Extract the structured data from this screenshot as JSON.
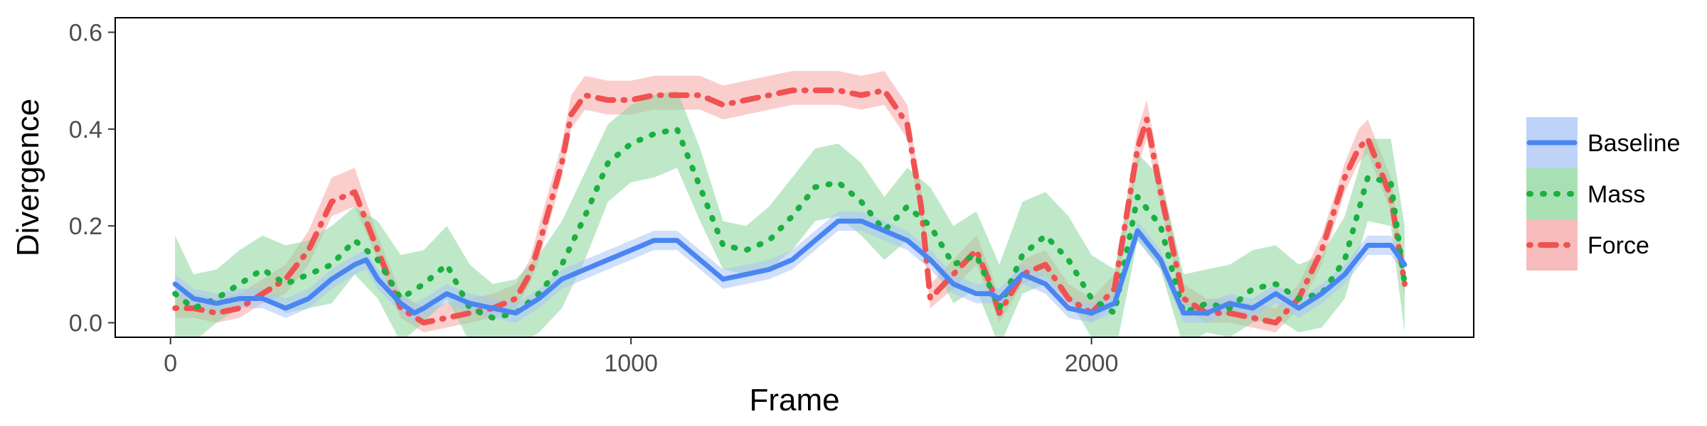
{
  "chart_data": {
    "type": "line",
    "xlabel": "Frame",
    "ylabel": "Divergence",
    "xlim": [
      -120,
      2830
    ],
    "ylim": [
      -0.03,
      0.63
    ],
    "xticks": [
      0,
      1000,
      2000
    ],
    "yticks": [
      0.0,
      0.2,
      0.4,
      0.6
    ],
    "xtick_labels": [
      "0",
      "1000",
      "2000"
    ],
    "ytick_labels": [
      "0.0",
      "0.2",
      "0.4",
      "0.6"
    ],
    "grid": false,
    "legend_position": "right",
    "series": [
      {
        "name": "Baseline",
        "color": "#4a86f2",
        "band_color": "#aac4f7",
        "style": "solid",
        "x": [
          10,
          50,
          100,
          150,
          200,
          250,
          300,
          350,
          400,
          425,
          450,
          500,
          530,
          550,
          600,
          650,
          700,
          750,
          800,
          850,
          900,
          950,
          1000,
          1050,
          1100,
          1150,
          1200,
          1250,
          1300,
          1350,
          1400,
          1450,
          1500,
          1550,
          1600,
          1650,
          1700,
          1750,
          1780,
          1800,
          1850,
          1900,
          1950,
          2000,
          2050,
          2100,
          2150,
          2200,
          2250,
          2300,
          2350,
          2400,
          2450,
          2500,
          2550,
          2600,
          2650,
          2680
        ],
        "y": [
          0.08,
          0.05,
          0.04,
          0.05,
          0.05,
          0.03,
          0.05,
          0.09,
          0.12,
          0.13,
          0.09,
          0.04,
          0.02,
          0.03,
          0.06,
          0.04,
          0.03,
          0.02,
          0.05,
          0.09,
          0.11,
          0.13,
          0.15,
          0.17,
          0.17,
          0.13,
          0.09,
          0.1,
          0.11,
          0.13,
          0.17,
          0.21,
          0.21,
          0.19,
          0.17,
          0.13,
          0.08,
          0.06,
          0.06,
          0.05,
          0.1,
          0.08,
          0.03,
          0.02,
          0.04,
          0.19,
          0.13,
          0.02,
          0.02,
          0.04,
          0.03,
          0.06,
          0.03,
          0.06,
          0.1,
          0.16,
          0.16,
          0.12
        ],
        "lower": [
          0.06,
          0.03,
          0.02,
          0.03,
          0.03,
          0.01,
          0.03,
          0.07,
          0.1,
          0.11,
          0.07,
          0.02,
          0.0,
          0.01,
          0.04,
          0.02,
          0.01,
          0.0,
          0.03,
          0.07,
          0.09,
          0.11,
          0.13,
          0.15,
          0.15,
          0.11,
          0.07,
          0.08,
          0.09,
          0.11,
          0.15,
          0.19,
          0.19,
          0.17,
          0.15,
          0.11,
          0.06,
          0.04,
          0.04,
          0.03,
          0.08,
          0.06,
          0.01,
          0.0,
          0.02,
          0.17,
          0.11,
          0.0,
          0.0,
          0.02,
          0.01,
          0.04,
          0.01,
          0.04,
          0.08,
          0.14,
          0.14,
          0.1
        ],
        "upper": [
          0.1,
          0.07,
          0.06,
          0.07,
          0.07,
          0.05,
          0.07,
          0.11,
          0.14,
          0.15,
          0.11,
          0.06,
          0.04,
          0.05,
          0.08,
          0.06,
          0.05,
          0.04,
          0.07,
          0.11,
          0.13,
          0.15,
          0.17,
          0.19,
          0.19,
          0.15,
          0.11,
          0.12,
          0.13,
          0.15,
          0.19,
          0.23,
          0.23,
          0.21,
          0.19,
          0.15,
          0.1,
          0.08,
          0.08,
          0.07,
          0.12,
          0.1,
          0.05,
          0.04,
          0.06,
          0.21,
          0.15,
          0.04,
          0.04,
          0.06,
          0.05,
          0.08,
          0.05,
          0.08,
          0.12,
          0.18,
          0.18,
          0.14
        ]
      },
      {
        "name": "Mass",
        "color": "#1bb040",
        "band_color": "#8ad69a",
        "style": "dotted",
        "x": [
          10,
          50,
          100,
          150,
          200,
          250,
          300,
          350,
          400,
          450,
          500,
          550,
          600,
          650,
          700,
          750,
          800,
          850,
          900,
          950,
          1000,
          1050,
          1100,
          1150,
          1200,
          1250,
          1300,
          1350,
          1400,
          1450,
          1500,
          1550,
          1600,
          1650,
          1700,
          1750,
          1800,
          1850,
          1900,
          1950,
          2000,
          2050,
          2100,
          2150,
          2200,
          2250,
          2300,
          2350,
          2400,
          2450,
          2500,
          2550,
          2600,
          2650,
          2680
        ],
        "y": [
          0.06,
          0.03,
          0.05,
          0.08,
          0.11,
          0.08,
          0.1,
          0.12,
          0.17,
          0.13,
          0.05,
          0.08,
          0.12,
          0.03,
          0.01,
          0.02,
          0.06,
          0.12,
          0.22,
          0.33,
          0.37,
          0.39,
          0.4,
          0.28,
          0.16,
          0.15,
          0.17,
          0.22,
          0.28,
          0.29,
          0.25,
          0.19,
          0.24,
          0.2,
          0.12,
          0.14,
          0.03,
          0.14,
          0.18,
          0.13,
          0.05,
          0.02,
          0.26,
          0.2,
          0.02,
          0.04,
          0.03,
          0.07,
          0.08,
          0.05,
          0.06,
          0.13,
          0.3,
          0.29,
          0.08
        ],
        "lower": [
          -0.06,
          -0.04,
          0.0,
          0.03,
          0.06,
          0.02,
          0.03,
          0.04,
          0.1,
          0.05,
          -0.04,
          0.0,
          0.05,
          -0.04,
          -0.06,
          -0.05,
          -0.02,
          0.03,
          0.13,
          0.25,
          0.29,
          0.3,
          0.32,
          0.21,
          0.11,
          0.1,
          0.11,
          0.15,
          0.21,
          0.22,
          0.18,
          0.13,
          0.17,
          0.13,
          0.04,
          0.07,
          -0.05,
          0.06,
          0.08,
          0.05,
          -0.03,
          -0.07,
          0.17,
          0.11,
          -0.05,
          -0.02,
          -0.03,
          0.0,
          0.01,
          -0.02,
          -0.01,
          0.05,
          0.21,
          0.2,
          -0.02
        ],
        "upper": [
          0.18,
          0.1,
          0.11,
          0.15,
          0.18,
          0.16,
          0.17,
          0.2,
          0.24,
          0.21,
          0.14,
          0.15,
          0.2,
          0.12,
          0.08,
          0.09,
          0.14,
          0.21,
          0.31,
          0.41,
          0.45,
          0.47,
          0.48,
          0.36,
          0.21,
          0.2,
          0.24,
          0.3,
          0.36,
          0.37,
          0.33,
          0.26,
          0.32,
          0.28,
          0.2,
          0.23,
          0.12,
          0.25,
          0.27,
          0.22,
          0.14,
          0.11,
          0.35,
          0.3,
          0.1,
          0.11,
          0.12,
          0.15,
          0.16,
          0.12,
          0.14,
          0.22,
          0.38,
          0.38,
          0.2
        ]
      },
      {
        "name": "Force",
        "color": "#f05252",
        "band_color": "#f7a5a5",
        "style": "dotdash",
        "x": [
          10,
          50,
          100,
          150,
          200,
          250,
          300,
          350,
          400,
          450,
          500,
          550,
          600,
          650,
          700,
          750,
          780,
          800,
          850,
          870,
          900,
          950,
          1000,
          1050,
          1100,
          1150,
          1200,
          1250,
          1300,
          1350,
          1400,
          1450,
          1500,
          1550,
          1600,
          1630,
          1650,
          1700,
          1750,
          1780,
          1800,
          1850,
          1900,
          1950,
          2000,
          2050,
          2100,
          2120,
          2150,
          2200,
          2250,
          2300,
          2350,
          2400,
          2450,
          2500,
          2550,
          2580,
          2600,
          2650,
          2680
        ],
        "y": [
          0.03,
          0.03,
          0.02,
          0.03,
          0.06,
          0.09,
          0.15,
          0.25,
          0.27,
          0.15,
          0.03,
          0.0,
          0.01,
          0.02,
          0.03,
          0.05,
          0.1,
          0.16,
          0.33,
          0.43,
          0.47,
          0.46,
          0.46,
          0.47,
          0.47,
          0.47,
          0.45,
          0.46,
          0.47,
          0.48,
          0.48,
          0.48,
          0.47,
          0.48,
          0.41,
          0.24,
          0.05,
          0.1,
          0.15,
          0.08,
          0.02,
          0.1,
          0.12,
          0.05,
          0.02,
          0.07,
          0.36,
          0.42,
          0.27,
          0.05,
          0.02,
          0.02,
          0.01,
          0.0,
          0.05,
          0.15,
          0.3,
          0.36,
          0.38,
          0.26,
          0.08
        ],
        "lower": [
          0.01,
          0.01,
          0.0,
          0.01,
          0.04,
          0.06,
          0.12,
          0.22,
          0.24,
          0.13,
          0.01,
          -0.02,
          -0.01,
          0.0,
          0.01,
          0.03,
          0.08,
          0.13,
          0.3,
          0.4,
          0.44,
          0.43,
          0.43,
          0.44,
          0.44,
          0.44,
          0.42,
          0.43,
          0.44,
          0.45,
          0.45,
          0.45,
          0.44,
          0.45,
          0.38,
          0.21,
          0.03,
          0.07,
          0.12,
          0.05,
          0.0,
          0.08,
          0.1,
          0.03,
          0.0,
          0.04,
          0.32,
          0.38,
          0.24,
          0.03,
          0.0,
          0.0,
          -0.01,
          -0.02,
          0.03,
          0.12,
          0.27,
          0.33,
          0.35,
          0.23,
          0.05
        ],
        "upper": [
          0.06,
          0.06,
          0.05,
          0.06,
          0.09,
          0.12,
          0.19,
          0.3,
          0.32,
          0.18,
          0.06,
          0.03,
          0.04,
          0.05,
          0.06,
          0.08,
          0.13,
          0.2,
          0.37,
          0.47,
          0.51,
          0.5,
          0.5,
          0.51,
          0.51,
          0.51,
          0.49,
          0.5,
          0.51,
          0.52,
          0.52,
          0.52,
          0.51,
          0.52,
          0.45,
          0.28,
          0.08,
          0.13,
          0.18,
          0.11,
          0.05,
          0.13,
          0.15,
          0.08,
          0.05,
          0.1,
          0.4,
          0.46,
          0.31,
          0.08,
          0.05,
          0.05,
          0.04,
          0.03,
          0.08,
          0.18,
          0.33,
          0.4,
          0.42,
          0.3,
          0.11
        ]
      }
    ]
  }
}
